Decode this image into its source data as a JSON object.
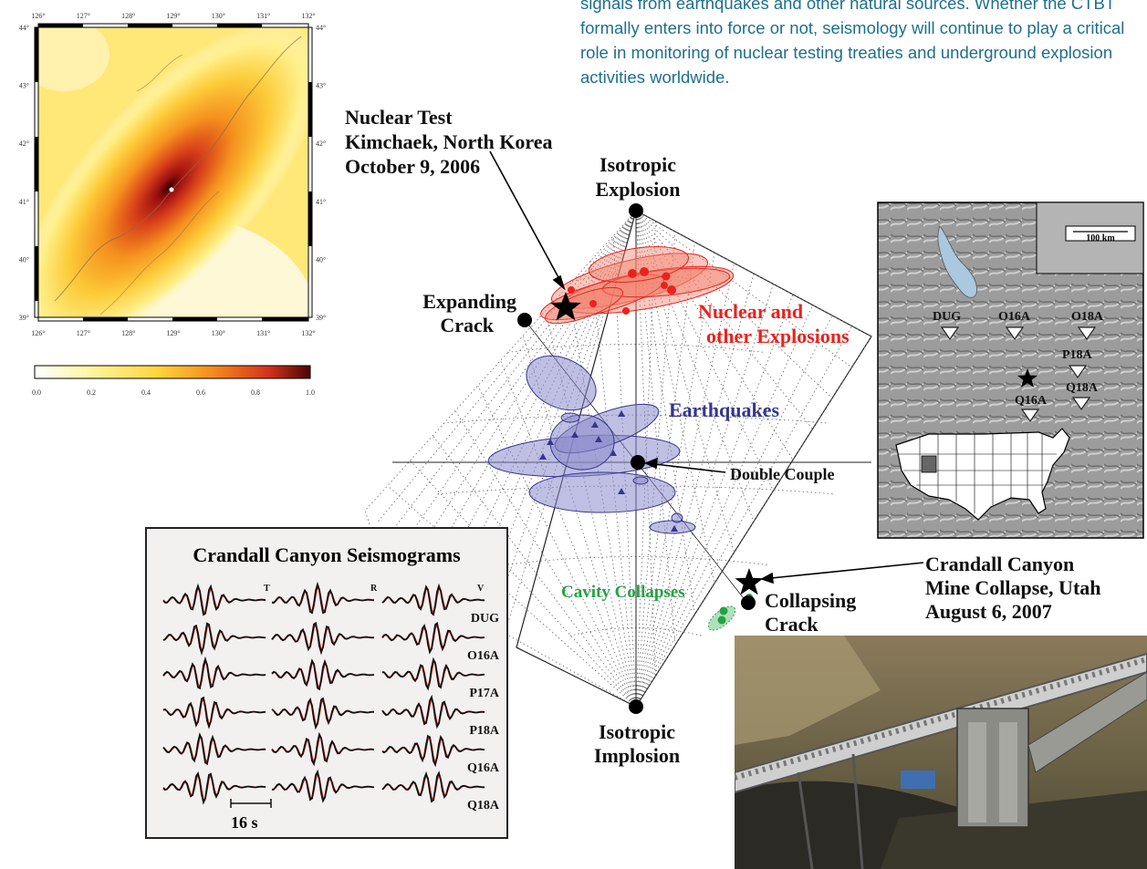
{
  "intro_text": "signals from earthquakes and other natural sources. Whether the CTBT formally enters into force or not, seismology will continue to play a critical role in monitoring of nuclear testing treaties and underground explosion activities worldwide.",
  "heatmap": {
    "lon_ticks": [
      "126°",
      "127°",
      "128°",
      "129°",
      "130°",
      "131°",
      "132°"
    ],
    "lat_ticks_left": [
      "44°",
      "43°",
      "42°",
      "41°",
      "40°",
      "39°"
    ],
    "lat_ticks_right": [
      "44°",
      "43°",
      "42°",
      "41°",
      "40°",
      "39°"
    ],
    "colorbar_ticks": [
      "0.0",
      "0.2",
      "0.4",
      "0.6",
      "0.8",
      "1.0"
    ],
    "colorbar_colors": [
      "#ffffff",
      "#fff6a0",
      "#ffd43a",
      "#f58a1c",
      "#d2321a",
      "#4a0606"
    ]
  },
  "diagram": {
    "nuclear_test_label": [
      "Nuclear Test",
      "Kimchaek, North Korea",
      "October 9, 2006"
    ],
    "isotropic_explosion": [
      "Isotropic",
      "Explosion"
    ],
    "isotropic_implosion": [
      "Isotropic",
      "Implosion"
    ],
    "expanding_crack": [
      "Expanding",
      "Crack"
    ],
    "collapsing_crack": [
      "Collapsing",
      "Crack"
    ],
    "double_couple": "Double Couple",
    "nuclear_explosions": [
      "Nuclear and",
      "other Explosions"
    ],
    "earthquakes": "Earthquakes",
    "cavity_collapses": "Cavity Collapses",
    "crandall_label": [
      "Crandall Canyon",
      "Mine Collapse, Utah",
      "August 6, 2007"
    ],
    "colors": {
      "explosion": "#e8231f",
      "earthquake": "#36368f",
      "collapse": "#27a146"
    }
  },
  "seismograms": {
    "title": "Crandall Canyon Seismograms",
    "components": [
      "T",
      "R",
      "V"
    ],
    "stations": [
      "DUG",
      "O16A",
      "P17A",
      "P18A",
      "Q16A",
      "Q18A"
    ],
    "scale_label": "16 s"
  },
  "utah_map": {
    "scale_label": "100 km",
    "stations": [
      "DUG",
      "O16A",
      "O18A",
      "P18A",
      "Q18A",
      "Q16A"
    ]
  }
}
